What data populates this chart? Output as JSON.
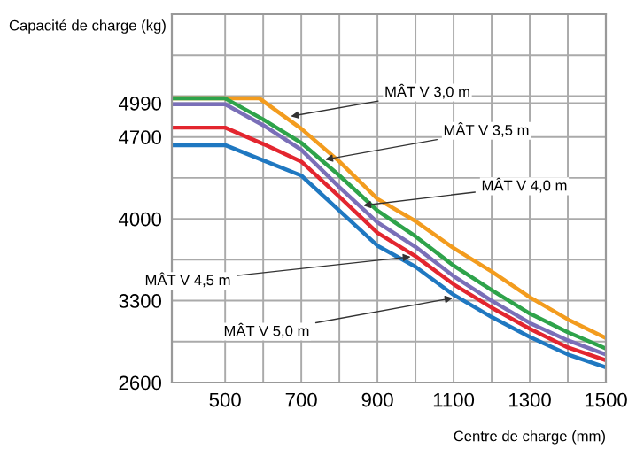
{
  "chart_data": {
    "type": "line",
    "xlabel": "Centre de charge (mm)",
    "ylabel": "Capacité de charge (kg)",
    "xlim": [
      360,
      1500
    ],
    "xticks": [
      500,
      {
        "value": 600,
        "label": null
      },
      700,
      {
        "value": 800,
        "label": null
      },
      900,
      {
        "value": 1000,
        "label": null
      },
      1100,
      {
        "value": 1200,
        "label": null
      },
      1300,
      {
        "value": 1400,
        "label": null
      },
      1500
    ],
    "ylim": [
      2600,
      5750
    ],
    "yticks": [
      2600,
      {
        "value": 2950,
        "label": null
      },
      3300,
      {
        "value": 3650,
        "label": null
      },
      4000,
      {
        "value": 4350,
        "label": null
      },
      4700,
      4990,
      {
        "value": 5050,
        "label": null
      },
      {
        "value": 5400,
        "label": null
      }
    ],
    "grid": true,
    "legend": false,
    "marker": "none",
    "line_style": "solid",
    "series": [
      {
        "color": "#f39c1e",
        "x": [
          360,
          500,
          590,
          700,
          800,
          900,
          1000,
          1100,
          1200,
          1300,
          1400,
          1500
        ],
        "values": [
          5030,
          5030,
          5030,
          4770,
          4490,
          4170,
          3980,
          3750,
          3550,
          3330,
          3140,
          2980
        ]
      },
      {
        "color": "#2ea34a",
        "x": [
          360,
          500,
          600,
          700,
          800,
          900,
          1000,
          1100,
          1200,
          1300,
          1400,
          1500
        ],
        "values": [
          5030,
          5030,
          4850,
          4650,
          4370,
          4070,
          3850,
          3600,
          3390,
          3190,
          3030,
          2890
        ]
      },
      {
        "color": "#7a6fb8",
        "x": [
          360,
          500,
          600,
          700,
          800,
          900,
          1000,
          1100,
          1200,
          1300,
          1400,
          1500
        ],
        "values": [
          4980,
          4980,
          4800,
          4590,
          4270,
          3970,
          3760,
          3510,
          3300,
          3110,
          2960,
          2840
        ]
      },
      {
        "color": "#e3262f",
        "x": [
          360,
          500,
          600,
          700,
          800,
          900,
          1000,
          1100,
          1200,
          1300,
          1400,
          1500
        ],
        "values": [
          4780,
          4780,
          4640,
          4490,
          4190,
          3880,
          3680,
          3440,
          3240,
          3060,
          2900,
          2790
        ]
      },
      {
        "color": "#1f78c1",
        "x": [
          360,
          500,
          600,
          700,
          800,
          900,
          1000,
          1100,
          1200,
          1300,
          1400,
          1500
        ],
        "values": [
          4630,
          4630,
          4500,
          4370,
          4070,
          3770,
          3590,
          3350,
          3160,
          2990,
          2840,
          2730
        ]
      }
    ],
    "annotations": [
      {
        "text": "MÂT V 3,0 m",
        "x": 660,
        "y": 4870
      },
      {
        "text": "MÂT V 3,5 m",
        "x": 750,
        "y": 4500
      },
      {
        "text": "MÂT V 4,0 m",
        "x": 850,
        "y": 4110
      },
      {
        "text": "MÂT V 4,5 m",
        "x": 1000,
        "y": 3680
      },
      {
        "text": "MÂT V 5,0 m",
        "x": 1110,
        "y": 3330
      }
    ]
  }
}
